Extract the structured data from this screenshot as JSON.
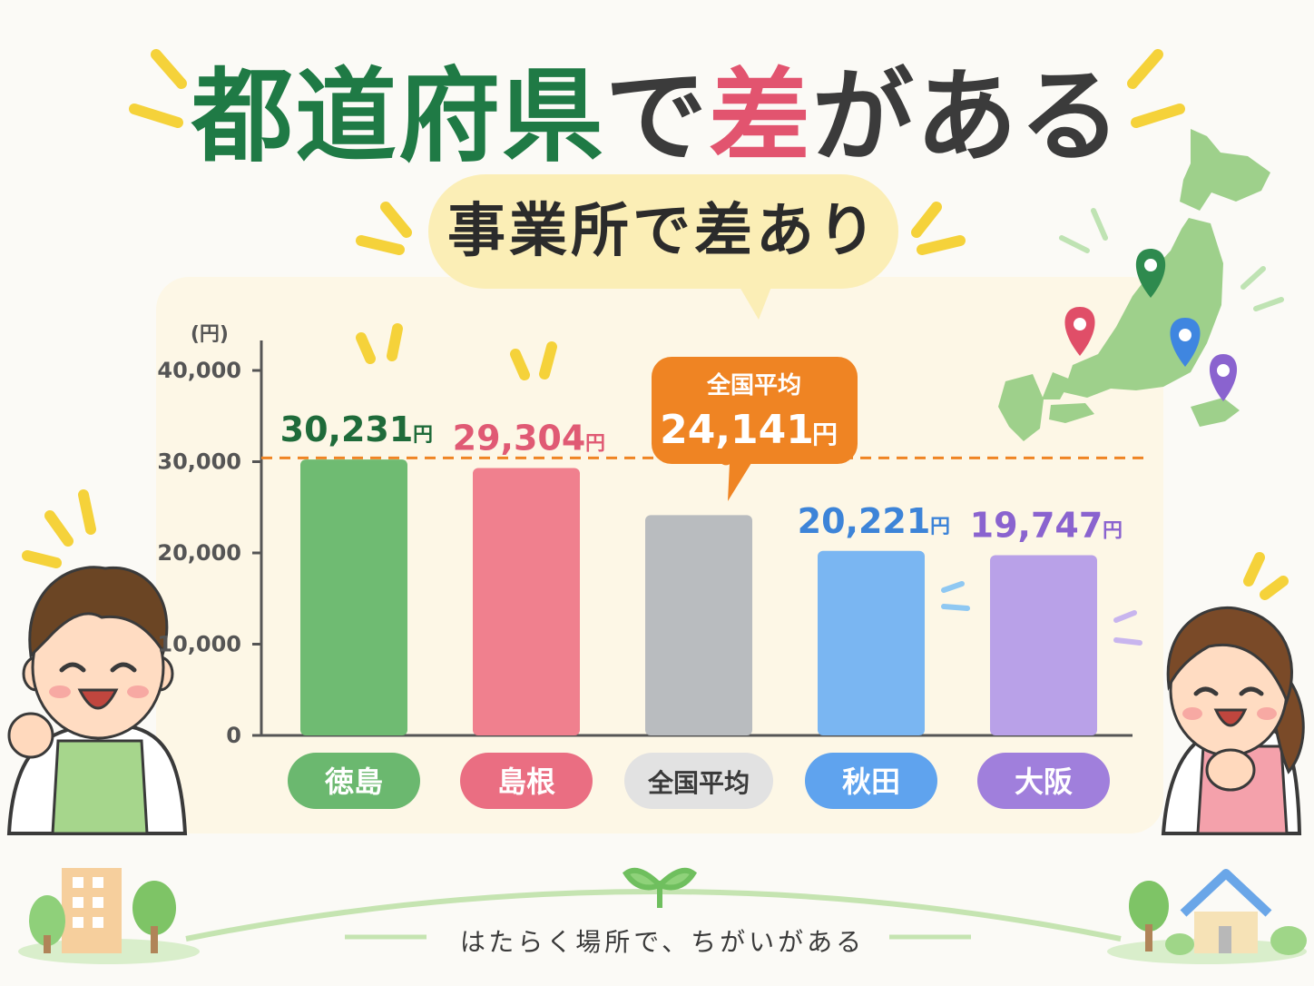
{
  "header": {
    "title_parts": [
      "都道府県",
      "で",
      "差",
      "がある"
    ],
    "subtitle": "事業所で差あり"
  },
  "footer": {
    "text": "はたらく場所で、ちがいがある"
  },
  "chart_data": {
    "type": "bar",
    "y_unit": "(円)",
    "ylim": [
      0,
      40000
    ],
    "yticks": [
      0,
      10000,
      20000,
      30000,
      40000
    ],
    "ytick_labels": [
      "0",
      "10,000",
      "20,000",
      "30,000",
      "40,000"
    ],
    "categories": [
      "徳島",
      "島根",
      "全国平均",
      "秋田",
      "大阪"
    ],
    "values": [
      30231,
      29304,
      24141,
      20221,
      19747
    ],
    "value_labels": [
      "30,231",
      "29,304",
      "",
      "20,221",
      "19,747"
    ],
    "value_unit": "円",
    "colors": [
      "#6fbb72",
      "#f0808e",
      "#b9bcbf",
      "#7ab6f2",
      "#b9a1e8"
    ],
    "pill_colors": [
      "#6bb86f",
      "#ea6e82",
      "#e2e2e2",
      "#5fa3ee",
      "#a07fdc"
    ],
    "label_colors": [
      "#1f6b3a",
      "#e05a74",
      "#555555",
      "#3d84d8",
      "#8a63cf"
    ],
    "average": {
      "label": "全国平均",
      "value": 24141,
      "value_label": "24,141",
      "unit": "円",
      "color": "#ef8423"
    },
    "grid": false
  }
}
